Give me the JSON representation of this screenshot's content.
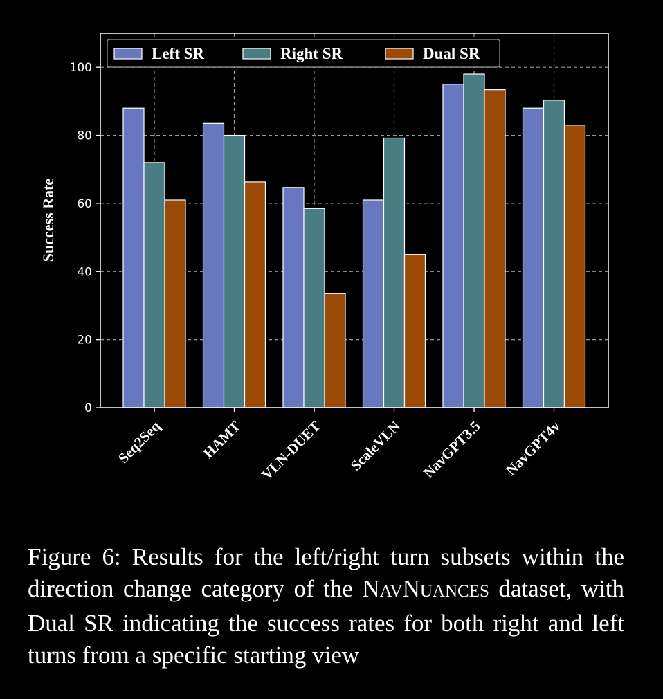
{
  "chart_data": {
    "type": "bar",
    "categories": [
      "Seq2Seq",
      "HAMT",
      "VLN-DUET",
      "ScaleVLN",
      "NavGPT3.5",
      "NavGPT4v"
    ],
    "series": [
      {
        "name": "Left SR",
        "color": "#6878c0",
        "values": [
          88,
          83.5,
          64.7,
          61,
          95,
          88
        ]
      },
      {
        "name": "Right SR",
        "color": "#4a7c84",
        "values": [
          72,
          80,
          58.5,
          79.2,
          98,
          90.3
        ]
      },
      {
        "name": "Dual SR",
        "color": "#9c4a08",
        "values": [
          61,
          66.3,
          33.5,
          45,
          93.4,
          83
        ]
      }
    ],
    "ylabel": "Success Rate",
    "ylim": [
      0,
      110
    ],
    "yticks": [
      "0",
      "20",
      "40",
      "60",
      "80",
      "100"
    ],
    "grid": true,
    "legend": "top"
  },
  "caption": {
    "prefix": "Figure 6: Results for the left/right turn subsets within the direction change category of the ",
    "name_parts": [
      "N",
      "AV",
      "N",
      "UANCES"
    ],
    "suffix": " dataset, with Dual SR indicating the success rates for both right and left turns from a specific starting view"
  }
}
